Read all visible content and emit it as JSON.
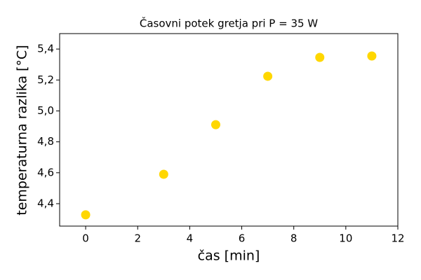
{
  "chart_data": {
    "type": "scatter",
    "title": "Časovni potek gretja pri P = 35 W",
    "x_label": "čas [min]",
    "y_label": "temperaturna razlika [°C]",
    "x": [
      0,
      3,
      5,
      7,
      9,
      11
    ],
    "values": [
      4.328,
      4.59,
      4.911,
      5.224,
      5.346,
      5.355
    ],
    "color": "#ffd700",
    "xlim": [
      -1,
      12
    ],
    "xticks": [
      0,
      2,
      4,
      6,
      8,
      10,
      12
    ],
    "ylim": [
      4.255,
      5.5
    ],
    "yticks": [
      {
        "value": 4.4,
        "label": "4,4"
      },
      {
        "value": 4.6,
        "label": "4,6"
      },
      {
        "value": 4.8,
        "label": "4,8"
      },
      {
        "value": 5.0,
        "label": "5,0"
      },
      {
        "value": 5.2,
        "label": "5,2"
      },
      {
        "value": 5.4,
        "label": "5,4"
      }
    ]
  }
}
